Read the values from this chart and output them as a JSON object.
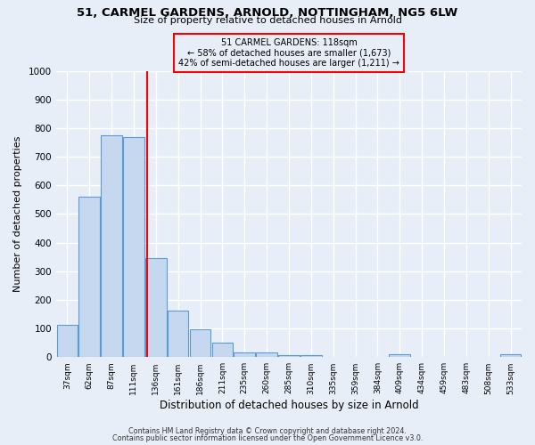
{
  "title": "51, CARMEL GARDENS, ARNOLD, NOTTINGHAM, NG5 6LW",
  "subtitle": "Size of property relative to detached houses in Arnold",
  "bar_labels": [
    "37sqm",
    "62sqm",
    "87sqm",
    "111sqm",
    "136sqm",
    "161sqm",
    "186sqm",
    "211sqm",
    "235sqm",
    "260sqm",
    "285sqm",
    "310sqm",
    "335sqm",
    "359sqm",
    "384sqm",
    "409sqm",
    "434sqm",
    "459sqm",
    "483sqm",
    "508sqm",
    "533sqm"
  ],
  "bar_values": [
    113,
    560,
    775,
    770,
    345,
    163,
    97,
    52,
    15,
    15,
    8,
    8,
    0,
    0,
    0,
    10,
    0,
    0,
    0,
    0,
    10
  ],
  "bar_color": "#c5d8f0",
  "bar_edge_color": "#5b9bd5",
  "xlabel": "Distribution of detached houses by size in Arnold",
  "ylabel": "Number of detached properties",
  "ylim": [
    0,
    1000
  ],
  "yticks": [
    0,
    100,
    200,
    300,
    400,
    500,
    600,
    700,
    800,
    900,
    1000
  ],
  "property_line_x": 3.62,
  "property_line_color": "red",
  "annotation_title": "51 CARMEL GARDENS: 118sqm",
  "annotation_line1": "← 58% of detached houses are smaller (1,673)",
  "annotation_line2": "42% of semi-detached houses are larger (1,211) →",
  "annotation_box_color": "red",
  "footer_line1": "Contains HM Land Registry data © Crown copyright and database right 2024.",
  "footer_line2": "Contains public sector information licensed under the Open Government Licence v3.0.",
  "background_color": "#e8eef8",
  "grid_color": "#ffffff"
}
